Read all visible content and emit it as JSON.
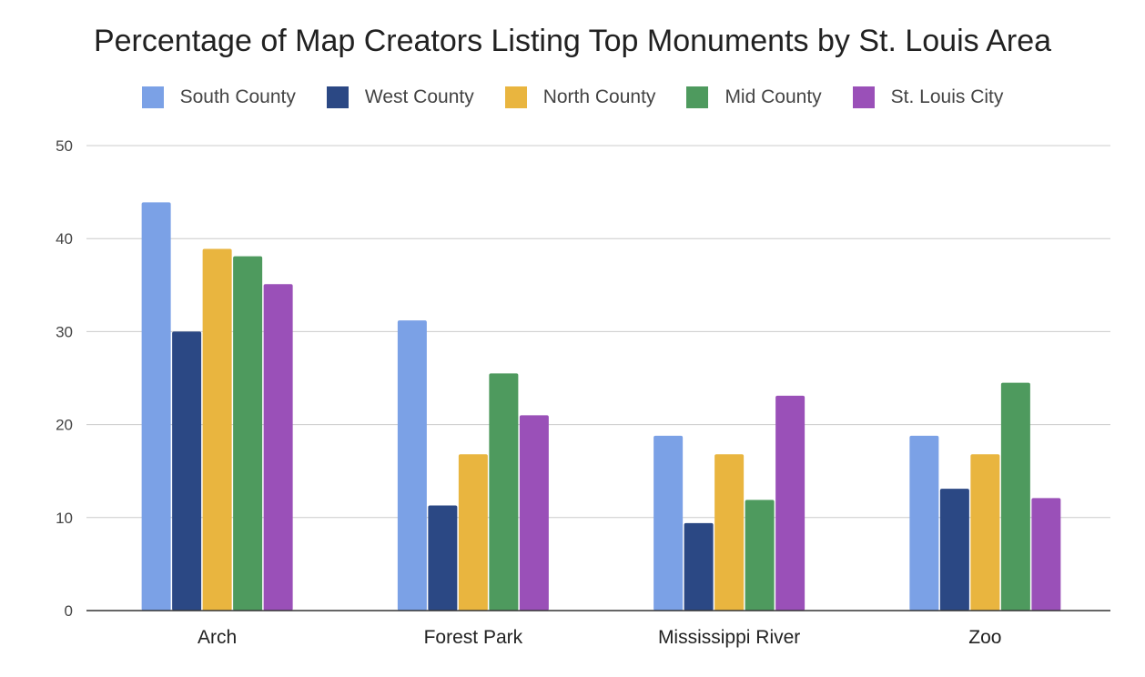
{
  "chart_data": {
    "type": "bar",
    "title": "Percentage of Map Creators Listing Top Monuments by St. Louis Area",
    "xlabel": "",
    "ylabel": "",
    "categories": [
      "Arch",
      "Forest Park",
      "Mississippi River",
      "Zoo"
    ],
    "ylim": [
      0,
      50
    ],
    "yticks": [
      "0",
      "10",
      "20",
      "30",
      "40",
      "50"
    ],
    "grid": true,
    "legend_position": "top",
    "series": [
      {
        "name": "South County",
        "color": "#7ba1e6",
        "values": [
          43.9,
          31.2,
          18.8,
          18.8
        ]
      },
      {
        "name": "West County",
        "color": "#2b4884",
        "values": [
          30.0,
          11.3,
          9.4,
          13.1
        ]
      },
      {
        "name": "North County",
        "color": "#e9b53f",
        "values": [
          38.9,
          16.8,
          16.8,
          16.8
        ]
      },
      {
        "name": "Mid County",
        "color": "#4e9a5e",
        "values": [
          38.1,
          25.5,
          11.9,
          24.5
        ]
      },
      {
        "name": "St. Louis City",
        "color": "#9a50b8",
        "values": [
          35.1,
          21.0,
          23.1,
          12.1
        ]
      }
    ]
  }
}
